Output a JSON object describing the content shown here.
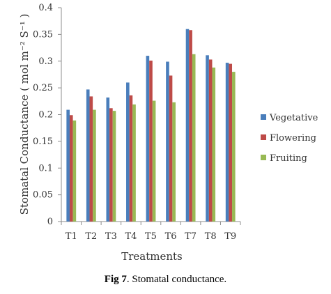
{
  "chart_data": {
    "type": "bar",
    "title": "",
    "xlabel": "Treatments",
    "ylabel": "Stomatal Conductance ( mol m⁻² S⁻¹ )",
    "ylim": [
      0,
      0.4
    ],
    "yticks": [
      "0",
      "0.05",
      "0.1",
      "0.15",
      "0.2",
      "0.25",
      "0.3",
      "0.35",
      "0.4"
    ],
    "grid": false,
    "legend_position": "right",
    "categories": [
      "T1",
      "T2",
      "T3",
      "T4",
      "T5",
      "T6",
      "T7",
      "T8",
      "T9"
    ],
    "series": [
      {
        "name": "Vegetative",
        "color": "#4a7ebb",
        "values": [
          0.209,
          0.247,
          0.232,
          0.26,
          0.31,
          0.299,
          0.36,
          0.311,
          0.297
        ]
      },
      {
        "name": "Flowering",
        "color": "#be4b48",
        "values": [
          0.199,
          0.234,
          0.212,
          0.236,
          0.301,
          0.273,
          0.358,
          0.303,
          0.295
        ]
      },
      {
        "name": "Fruiting",
        "color": "#98b954",
        "values": [
          0.189,
          0.209,
          0.207,
          0.219,
          0.226,
          0.223,
          0.313,
          0.288,
          0.28
        ]
      }
    ]
  },
  "caption": {
    "label": "Fig 7",
    "text": ". Stomatal  conductance."
  }
}
